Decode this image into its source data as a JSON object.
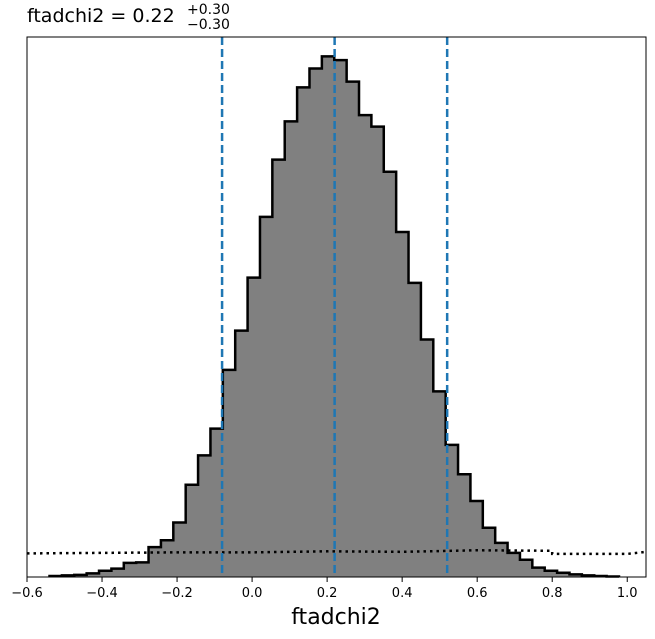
{
  "chart_data": {
    "type": "histogram",
    "parameter": "ftadchi2",
    "title": {
      "prefix": "ftadchi2 = 0.22",
      "upper": "+0.30",
      "lower": "−0.30"
    },
    "xlabel": "ftadchi2",
    "xlim": [
      -0.6,
      1.05
    ],
    "ylim": [
      0,
      1.03
    ],
    "x_ticks": [
      -0.6,
      -0.4,
      -0.2,
      0.0,
      0.2,
      0.4,
      0.6,
      0.8,
      1.0
    ],
    "x_tick_labels": [
      "−0.6",
      "−0.4",
      "−0.2",
      "0.0",
      "0.2",
      "0.4",
      "0.6",
      "0.8",
      "1.0"
    ],
    "grid": false,
    "posterior": {
      "color": "#808080",
      "edge_color": "#000000",
      "bin_edges": [
        -0.54,
        -0.507,
        -0.474,
        -0.441,
        -0.408,
        -0.375,
        -0.342,
        -0.309,
        -0.276,
        -0.243,
        -0.21,
        -0.177,
        -0.144,
        -0.111,
        -0.078,
        -0.045,
        -0.012,
        0.021,
        0.054,
        0.087,
        0.12,
        0.153,
        0.186,
        0.219,
        0.252,
        0.285,
        0.318,
        0.351,
        0.384,
        0.417,
        0.45,
        0.483,
        0.516,
        0.549,
        0.582,
        0.615,
        0.648,
        0.681,
        0.714,
        0.747,
        0.78,
        0.813,
        0.846,
        0.879,
        0.912,
        0.945,
        0.978
      ],
      "counts": [
        0.002,
        0.003,
        0.004,
        0.007,
        0.012,
        0.016,
        0.027,
        0.028,
        0.057,
        0.07,
        0.104,
        0.176,
        0.232,
        0.283,
        0.395,
        0.47,
        0.571,
        0.687,
        0.796,
        0.869,
        0.934,
        0.97,
        0.993,
        0.986,
        0.945,
        0.881,
        0.859,
        0.773,
        0.658,
        0.561,
        0.453,
        0.354,
        0.252,
        0.196,
        0.145,
        0.094,
        0.065,
        0.046,
        0.033,
        0.018,
        0.012,
        0.008,
        0.005,
        0.003,
        0.002,
        0.001
      ]
    },
    "prior": {
      "style": "dotted",
      "color": "#000000",
      "points": [
        [
          -0.6,
          0.045
        ],
        [
          -0.4,
          0.046
        ],
        [
          -0.2,
          0.047
        ],
        [
          0.0,
          0.047
        ],
        [
          0.2,
          0.049
        ],
        [
          0.4,
          0.048
        ],
        [
          0.6,
          0.051
        ],
        [
          0.8,
          0.05
        ],
        [
          0.8,
          0.044
        ],
        [
          1.0,
          0.044
        ],
        [
          1.05,
          0.048
        ]
      ]
    },
    "quantile_lines": {
      "color": "#1f77b4",
      "style": "dashed",
      "values": [
        -0.08,
        0.22,
        0.52
      ]
    }
  }
}
